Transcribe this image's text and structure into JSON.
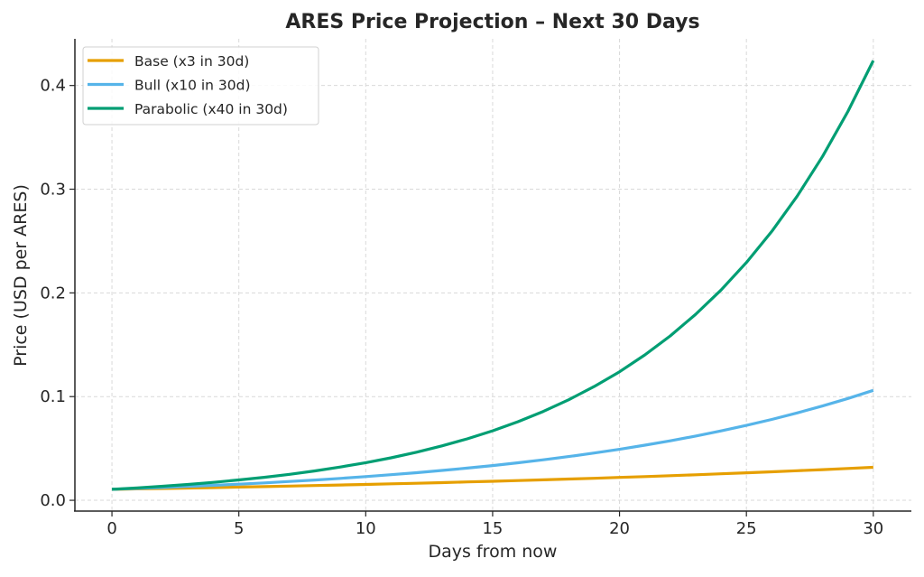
{
  "chart_data": {
    "type": "line",
    "title": "ARES Price Projection – Next 30 Days",
    "xlabel": "Days from now",
    "ylabel": "Price (USD per ARES)",
    "xlim": [
      -1.46,
      31.5
    ],
    "ylim": [
      -0.0104,
      0.445
    ],
    "xticks": [
      0,
      5,
      10,
      15,
      20,
      25,
      30
    ],
    "yticks": [
      0.0,
      0.1,
      0.2,
      0.3,
      0.4
    ],
    "xtick_labels": [
      "0",
      "5",
      "10",
      "15",
      "20",
      "25",
      "30"
    ],
    "ytick_labels": [
      "0.0",
      "0.1",
      "0.2",
      "0.3",
      "0.4"
    ],
    "grid": true,
    "legend_position": "top-left",
    "x": [
      0,
      1,
      2,
      3,
      4,
      5,
      6,
      7,
      8,
      9,
      10,
      11,
      12,
      13,
      14,
      15,
      16,
      17,
      18,
      19,
      20,
      21,
      22,
      23,
      24,
      25,
      26,
      27,
      28,
      29,
      30
    ],
    "series": [
      {
        "name": "Base (x3 in 30d)",
        "color": "#E69F00",
        "values": [
          0.0106,
          0.011,
          0.01141,
          0.01183,
          0.01227,
          0.01273,
          0.0132,
          0.0137,
          0.01421,
          0.01474,
          0.01529,
          0.01586,
          0.01645,
          0.01706,
          0.0177,
          0.01836,
          0.01904,
          0.01975,
          0.02049,
          0.02125,
          0.02205,
          0.02287,
          0.02372,
          0.02461,
          0.02552,
          0.02648,
          0.02747,
          0.02849,
          0.02955,
          0.03066,
          0.0318
        ]
      },
      {
        "name": "Bull (x10 in 30d)",
        "color": "#56B4E9",
        "values": [
          0.0106,
          0.01145,
          0.01236,
          0.01334,
          0.01441,
          0.01556,
          0.0168,
          0.01814,
          0.01959,
          0.02115,
          0.02284,
          0.02466,
          0.02663,
          0.02875,
          0.03104,
          0.03352,
          0.0362,
          0.03908,
          0.0422,
          0.04557,
          0.0492,
          0.05313,
          0.05737,
          0.06194,
          0.06689,
          0.07222,
          0.07799,
          0.08421,
          0.09093,
          0.09818,
          0.106
        ]
      },
      {
        "name": "Parabolic (x40 in 30d)",
        "color": "#009E73",
        "values": [
          0.0106,
          0.01199,
          0.01356,
          0.01533,
          0.01733,
          0.0196,
          0.02217,
          0.02507,
          0.02835,
          0.03206,
          0.03625,
          0.041,
          0.04636,
          0.05243,
          0.05929,
          0.06704,
          0.07582,
          0.08574,
          0.09695,
          0.10964,
          0.12398,
          0.14021,
          0.15855,
          0.1793,
          0.20277,
          0.2293,
          0.2593,
          0.29324,
          0.33161,
          0.375,
          0.424
        ]
      }
    ]
  }
}
